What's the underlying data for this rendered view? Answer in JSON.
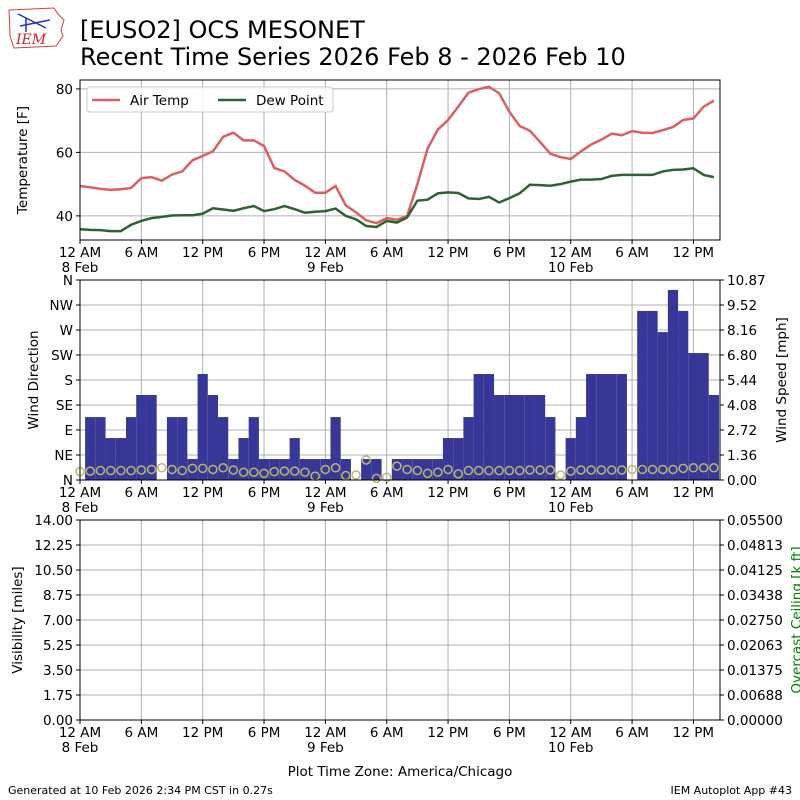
{
  "header": {
    "logo_text": "IEM",
    "title_line1": "[EUSO2] OCS MESONET",
    "title_line2": "Recent Time Series 2026 Feb 8 - 2026 Feb 10"
  },
  "footer": {
    "generated": "Generated at 10 Feb 2026 2:34 PM CST in 0.27s",
    "app": "IEM Autoplot App #43"
  },
  "colors": {
    "air_temp": "#dc5f63",
    "dew_point": "#2e6231",
    "wind_speed": "#373797",
    "wind_dir": "#b8b870",
    "grid": "#b0b0b0",
    "ceiling_label": "#008000"
  },
  "chart_data": [
    {
      "type": "line",
      "ylabel": "Temperature [F]",
      "ylim": [
        32.4,
        82.8
      ],
      "yticks": [
        40,
        60,
        80
      ],
      "x_unit": "hours since 12 AM 8 Feb",
      "xlim": [
        0,
        62.6
      ],
      "xticks": [
        0,
        6,
        12,
        18,
        24,
        30,
        36,
        42,
        48,
        54,
        60
      ],
      "xticklabels": [
        "12 AM",
        "6 AM",
        "12 PM",
        "6 PM",
        "12 AM",
        "6 AM",
        "12 PM",
        "6 PM",
        "12 AM",
        "6 AM",
        "12 PM"
      ],
      "date_labels": [
        {
          "at": 0,
          "text": "8 Feb"
        },
        {
          "at": 24,
          "text": "9 Feb"
        },
        {
          "at": 48,
          "text": "10 Feb"
        }
      ],
      "legend": "upper-left",
      "grid": true,
      "series": [
        {
          "name": "Air Temp",
          "color": "#dc5f63",
          "values": [
            49.4,
            49.0,
            48.5,
            48.2,
            48.4,
            48.8,
            51.9,
            52.2,
            51.1,
            53.0,
            54.0,
            57.5,
            58.9,
            60.3,
            64.9,
            66.2,
            63.8,
            63.8,
            62.0,
            55.1,
            54.0,
            51.3,
            49.5,
            47.3,
            47.3,
            49.4,
            43.3,
            41.1,
            38.6,
            37.7,
            39.3,
            38.8,
            40.0,
            50.0,
            61.2,
            67.2,
            70.2,
            74.4,
            78.8,
            79.9,
            80.7,
            78.6,
            72.8,
            68.3,
            66.8,
            63.3,
            59.6,
            58.5,
            57.9,
            60.3,
            62.5,
            64.0,
            65.9,
            65.4,
            66.7,
            66.2,
            66.1,
            67.0,
            68.0,
            70.2,
            70.7,
            74.4,
            76.3
          ]
        },
        {
          "name": "Dew Point",
          "color": "#2e6231",
          "values": [
            35.8,
            35.6,
            35.5,
            35.2,
            35.2,
            37.2,
            38.4,
            39.3,
            39.7,
            40.1,
            40.2,
            40.2,
            40.7,
            42.4,
            42.0,
            41.6,
            42.4,
            43.1,
            41.5,
            42.1,
            43.1,
            42.1,
            41.0,
            41.3,
            41.5,
            42.3,
            40.0,
            38.9,
            36.8,
            36.5,
            38.4,
            37.9,
            39.5,
            44.8,
            45.1,
            47.1,
            47.4,
            47.2,
            45.5,
            45.3,
            46.0,
            44.2,
            45.6,
            47.1,
            49.8,
            49.7,
            49.5,
            50.0,
            50.8,
            51.4,
            51.4,
            51.6,
            52.6,
            52.9,
            52.9,
            52.9,
            52.9,
            54.0,
            54.5,
            54.6,
            55.0,
            52.9,
            52.2
          ]
        }
      ]
    },
    {
      "type": "bar",
      "ylabel": "Wind Direction",
      "ylabel_right": "Wind Speed [mph]",
      "dir_ylim": [
        0,
        360
      ],
      "dir_ticks": [
        0,
        45,
        90,
        135,
        180,
        225,
        270,
        315,
        360
      ],
      "dir_ticklabels": [
        "N",
        "NE",
        "E",
        "SE",
        "S",
        "SW",
        "W",
        "NW",
        "N"
      ],
      "speed_ylim": [
        0,
        10.87
      ],
      "speed_ticklabels": [
        "0.00",
        "1.36",
        "2.72",
        "4.08",
        "5.44",
        "6.80",
        "8.16",
        "9.52",
        "10.87"
      ],
      "bar_start_hour": 0.5,
      "wind_speed_mph": [
        3.42,
        3.42,
        2.28,
        2.28,
        3.42,
        4.62,
        4.62,
        0,
        3.42,
        3.42,
        1.14,
        5.76,
        4.62,
        3.42,
        1.14,
        2.28,
        3.42,
        1.14,
        1.14,
        1.14,
        2.28,
        1.14,
        1.14,
        1.14,
        3.42,
        1.14,
        0,
        1.14,
        1.14,
        0,
        1.14,
        1.14,
        1.14,
        1.14,
        1.14,
        2.28,
        2.28,
        3.42,
        5.76,
        5.76,
        4.62,
        4.62,
        4.62,
        4.62,
        4.62,
        3.42,
        0,
        2.28,
        3.42,
        5.76,
        5.76,
        5.76,
        5.76,
        0,
        9.19,
        9.19,
        8.04,
        10.33,
        9.19,
        6.9,
        6.9,
        4.62
      ],
      "wind_dir_deg": [
        15,
        16,
        17,
        17,
        17,
        17,
        18,
        19,
        22,
        19,
        17,
        21,
        21,
        19,
        22,
        18,
        14,
        14,
        12,
        15,
        16,
        16,
        14,
        7,
        19,
        22,
        8,
        9,
        36,
        3,
        5,
        25,
        19,
        17,
        12,
        14,
        19,
        11,
        17,
        17,
        17,
        17,
        17,
        17,
        18,
        18,
        18,
        9,
        16,
        18,
        18,
        18,
        18,
        18,
        19,
        19,
        19,
        19,
        19,
        21,
        22,
        22,
        22
      ]
    },
    {
      "type": "line",
      "ylabel": "Visibility [miles]",
      "ylabel_right": "Overcast Ceiling [k ft]",
      "ylim": [
        0,
        14
      ],
      "yticklabels": [
        "0.00",
        "1.75",
        "3.50",
        "5.25",
        "7.00",
        "8.75",
        "10.50",
        "12.25",
        "14.00"
      ],
      "right_ylim": [
        0,
        0.055
      ],
      "right_ticklabels": [
        "0.00000",
        "0.00688",
        "0.01375",
        "0.02063",
        "0.02750",
        "0.03438",
        "0.04125",
        "0.04813",
        "0.05500"
      ],
      "xlabel": "Plot Time Zone: America/Chicago",
      "series": []
    }
  ]
}
